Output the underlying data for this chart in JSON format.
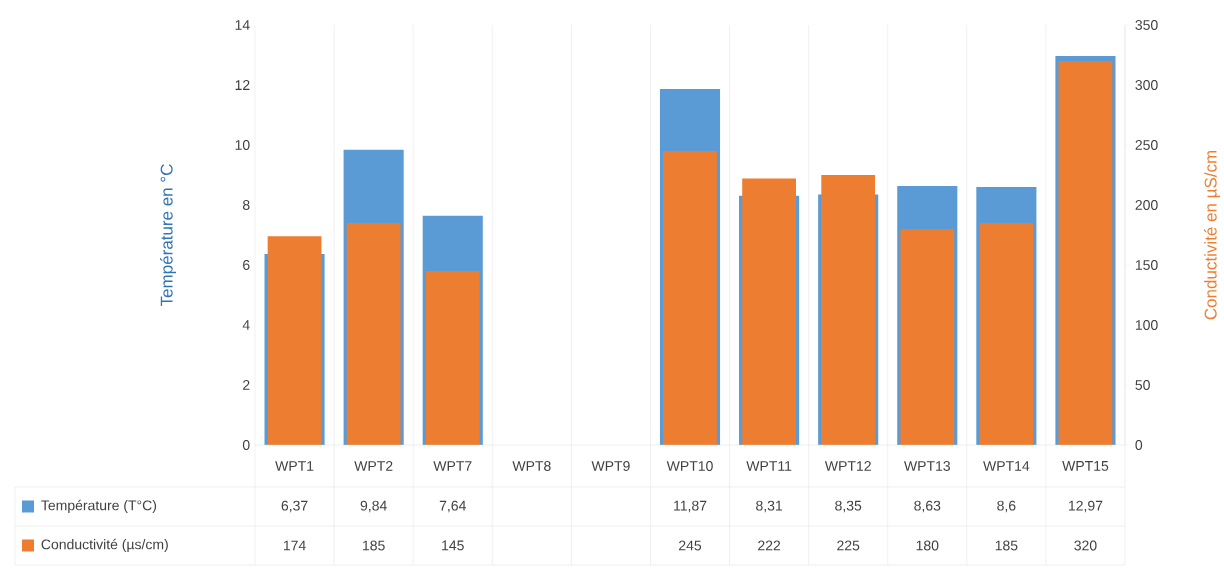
{
  "chart_data": {
    "type": "bar",
    "categories": [
      "WPT1",
      "WPT2",
      "WPT7",
      "WPT8",
      "WPT9",
      "WPT10",
      "WPT11",
      "WPT12",
      "WPT13",
      "WPT14",
      "WPT15"
    ],
    "series": [
      {
        "name": "Température (T°C)",
        "color": "#5b9bd5",
        "values": [
          6.37,
          9.84,
          7.64,
          null,
          null,
          11.87,
          8.31,
          8.35,
          8.63,
          8.6,
          12.97
        ],
        "value_labels": [
          "6,37",
          "9,84",
          "7,64",
          null,
          null,
          "11,87",
          "8,31",
          "8,35",
          "8,63",
          "8,6",
          "12,97"
        ]
      },
      {
        "name": "Conductivité (µs/cm)",
        "color": "#ed7d31",
        "axis": "y2",
        "values": [
          174,
          185,
          145,
          null,
          null,
          245,
          222,
          225,
          180,
          185,
          320
        ],
        "value_labels": [
          "174",
          "185",
          "145",
          null,
          null,
          "245",
          "222",
          "225",
          "180",
          "185",
          "320"
        ]
      }
    ],
    "ylabel": "Température en °C",
    "y2label": "Conductivité en µS/cm",
    "ylim": [
      0,
      14
    ],
    "yticks": [
      0,
      2,
      4,
      6,
      8,
      10,
      12,
      14
    ],
    "y2lim": [
      0,
      350
    ],
    "y2ticks": [
      0,
      50,
      100,
      150,
      200,
      250,
      300,
      350
    ],
    "grid": "x",
    "legend": "bottom"
  }
}
